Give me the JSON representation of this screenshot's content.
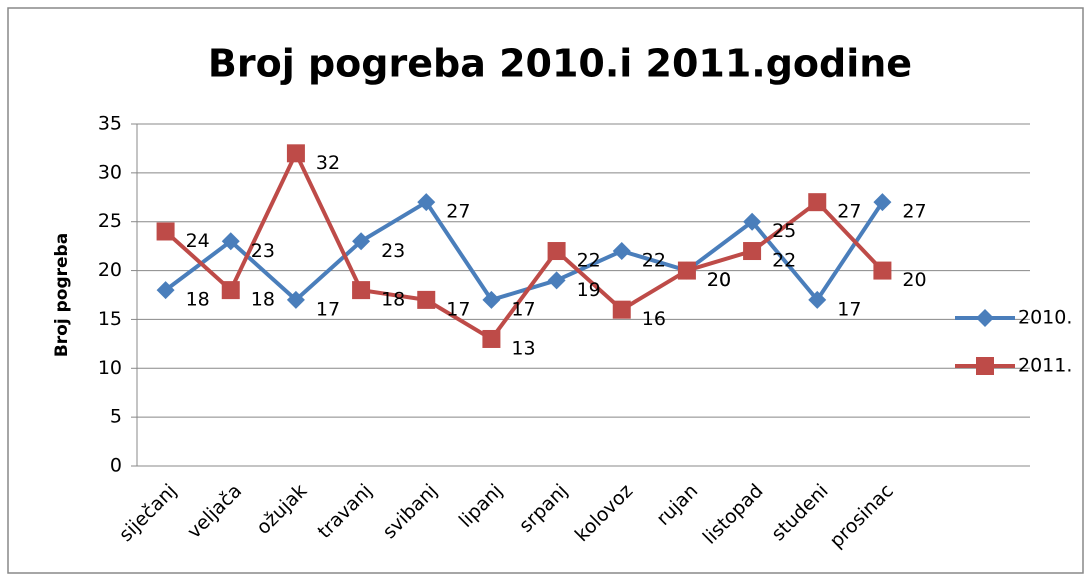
{
  "chart_data": {
    "type": "line",
    "title": "Broj pogreba 2010.i 2011.godine",
    "y_label": "Broj pogreba",
    "categories": [
      "siječanj",
      "veljača",
      "ožujak",
      "travanj",
      "svibanj",
      "lipanj",
      "srpanj",
      "kolovoz",
      "rujan",
      "listopad",
      "studeni",
      "prosinac"
    ],
    "series": [
      {
        "name": "2010.",
        "color": "#4a7ebb",
        "marker": "diamond",
        "values": [
          18,
          23,
          17,
          23,
          27,
          17,
          19,
          22,
          20,
          25,
          17,
          27
        ]
      },
      {
        "name": "2011.",
        "color": "#be4b48",
        "marker": "square",
        "values": [
          24,
          18,
          32,
          18,
          17,
          13,
          22,
          16,
          20,
          22,
          27,
          20
        ]
      }
    ],
    "ylim": [
      0,
      35
    ],
    "yticks": [
      0,
      5,
      10,
      15,
      20,
      25,
      30,
      35
    ],
    "grid": true,
    "legend": "right"
  }
}
